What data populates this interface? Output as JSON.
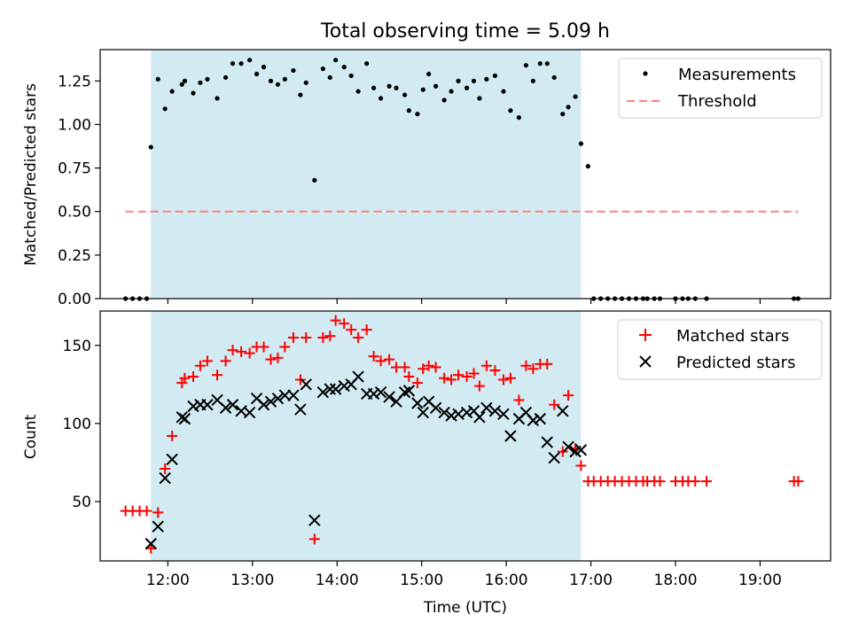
{
  "chart_data": [
    {
      "type": "scatter",
      "title": "Total observing time = 5.09 h",
      "xlabel": "",
      "ylabel": "Matched/Predicted stars",
      "xlim": [
        "11:12",
        "19:50"
      ],
      "ylim": [
        0,
        1.43
      ],
      "yticks": [
        0,
        0.25,
        0.5,
        0.75,
        1.0,
        1.25
      ],
      "ytick_labels": [
        "0.00",
        "0.25",
        "0.50",
        "0.75",
        "1.00",
        "1.25"
      ],
      "shaded_interval": [
        "11:48",
        "16:53"
      ],
      "shade_color": "#add8e6",
      "legend": {
        "placement": "top-right",
        "entries": [
          "Measurements",
          "Threshold"
        ]
      },
      "series": [
        {
          "name": "Measurements",
          "color": "#000000",
          "marker": "dot",
          "x": [
            "11:30",
            "11:35",
            "11:40",
            "11:45",
            "11:48",
            "11:53",
            "11:58",
            "12:03",
            "12:10",
            "12:12",
            "12:18",
            "12:23",
            "12:28",
            "12:35",
            "12:41",
            "12:46",
            "12:52",
            "12:58",
            "13:03",
            "13:08",
            "13:13",
            "13:18",
            "13:23",
            "13:29",
            "13:34",
            "13:38",
            "13:44",
            "13:50",
            "13:55",
            "13:59",
            "14:05",
            "14:10",
            "14:15",
            "14:21",
            "14:26",
            "14:31",
            "14:37",
            "14:42",
            "14:48",
            "14:51",
            "14:57",
            "15:01",
            "15:05",
            "15:10",
            "15:16",
            "15:21",
            "15:26",
            "15:32",
            "15:37",
            "15:41",
            "15:46",
            "15:52",
            "15:58",
            "16:03",
            "16:09",
            "16:14",
            "16:19",
            "16:24",
            "16:29",
            "16:34",
            "16:40",
            "16:44",
            "16:49",
            "16:53",
            "16:58",
            "17:02",
            "17:07",
            "17:12",
            "17:17",
            "17:22",
            "17:27",
            "17:32",
            "17:37",
            "17:40",
            "17:45",
            "17:49",
            "18:00",
            "18:05",
            "18:09",
            "18:14",
            "18:22",
            "19:24",
            "19:27"
          ],
          "y": [
            0,
            0,
            0,
            0,
            0.87,
            1.26,
            1.09,
            1.19,
            1.23,
            1.25,
            1.18,
            1.24,
            1.26,
            1.15,
            1.27,
            1.35,
            1.35,
            1.37,
            1.29,
            1.33,
            1.25,
            1.23,
            1.26,
            1.31,
            1.17,
            1.24,
            0.68,
            1.32,
            1.27,
            1.37,
            1.33,
            1.28,
            1.19,
            1.35,
            1.21,
            1.15,
            1.22,
            1.21,
            1.17,
            1.08,
            1.06,
            1.2,
            1.29,
            1.22,
            1.14,
            1.19,
            1.25,
            1.21,
            1.25,
            1.15,
            1.26,
            1.28,
            1.19,
            1.08,
            1.04,
            1.34,
            1.25,
            1.35,
            1.35,
            1.27,
            1.06,
            1.1,
            1.16,
            0.89,
            0.76,
            0,
            0,
            0,
            0,
            0,
            0,
            0,
            0,
            0,
            0,
            0,
            0,
            0,
            0,
            0,
            0,
            0,
            0
          ]
        },
        {
          "name": "Threshold",
          "color": "#ff7f7f",
          "style": "dashed",
          "x": [
            "11:30",
            "19:27"
          ],
          "y": [
            0.5,
            0.5
          ]
        }
      ]
    },
    {
      "type": "scatter",
      "title": "",
      "xlabel": "Time (UTC)",
      "ylabel": "Count",
      "xlim": [
        "11:12",
        "19:50"
      ],
      "ylim": [
        12,
        172
      ],
      "yticks": [
        50,
        100,
        150
      ],
      "ytick_labels": [
        "50",
        "100",
        "150"
      ],
      "xticks": [
        "12:00",
        "13:00",
        "14:00",
        "15:00",
        "16:00",
        "17:00",
        "18:00",
        "19:00"
      ],
      "xtick_labels": [
        "12:00",
        "13:00",
        "14:00",
        "15:00",
        "16:00",
        "17:00",
        "18:00",
        "19:00"
      ],
      "shaded_interval": [
        "11:48",
        "16:53"
      ],
      "shade_color": "#add8e6",
      "legend": {
        "placement": "top-right",
        "entries": [
          "Matched stars",
          "Predicted stars"
        ]
      },
      "series": [
        {
          "name": "Matched stars",
          "color": "#ff0000",
          "marker": "plus",
          "x": [
            "11:30",
            "11:35",
            "11:40",
            "11:45",
            "11:48",
            "11:53",
            "11:58",
            "12:03",
            "12:10",
            "12:12",
            "12:18",
            "12:23",
            "12:28",
            "12:35",
            "12:41",
            "12:46",
            "12:52",
            "12:58",
            "13:03",
            "13:08",
            "13:13",
            "13:18",
            "13:23",
            "13:29",
            "13:34",
            "13:38",
            "13:44",
            "13:50",
            "13:55",
            "13:59",
            "14:05",
            "14:10",
            "14:15",
            "14:21",
            "14:26",
            "14:31",
            "14:37",
            "14:42",
            "14:48",
            "14:51",
            "14:57",
            "15:01",
            "15:05",
            "15:10",
            "15:16",
            "15:21",
            "15:26",
            "15:32",
            "15:37",
            "15:41",
            "15:46",
            "15:52",
            "15:58",
            "16:03",
            "16:09",
            "16:14",
            "16:19",
            "16:24",
            "16:29",
            "16:34",
            "16:40",
            "16:44",
            "16:49",
            "16:53",
            "16:58",
            "17:02",
            "17:07",
            "17:12",
            "17:17",
            "17:22",
            "17:27",
            "17:32",
            "17:37",
            "17:40",
            "17:45",
            "17:49",
            "18:00",
            "18:05",
            "18:09",
            "18:14",
            "18:22",
            "19:24",
            "19:27"
          ],
          "y": [
            44,
            44,
            44,
            44,
            20,
            43,
            71,
            92,
            126,
            129,
            130,
            137,
            140,
            131,
            140,
            147,
            146,
            145,
            149,
            149,
            141,
            142,
            149,
            155,
            128,
            155,
            26,
            155,
            156,
            166,
            164,
            160,
            155,
            160,
            143,
            140,
            141,
            136,
            136,
            130,
            126,
            135,
            137,
            136,
            129,
            128,
            131,
            130,
            132,
            124,
            137,
            134,
            128,
            129,
            115,
            137,
            135,
            138,
            138,
            112,
            82,
            118,
            84,
            73,
            63,
            63,
            63,
            63,
            63,
            63,
            63,
            63,
            63,
            63,
            63,
            63,
            63,
            63,
            63,
            63,
            63,
            63,
            63
          ]
        },
        {
          "name": "Predicted stars",
          "color": "#000000",
          "marker": "x",
          "x": [
            "11:48",
            "11:53",
            "11:58",
            "12:03",
            "12:10",
            "12:12",
            "12:18",
            "12:23",
            "12:28",
            "12:35",
            "12:41",
            "12:46",
            "12:52",
            "12:58",
            "13:03",
            "13:08",
            "13:13",
            "13:18",
            "13:23",
            "13:29",
            "13:34",
            "13:38",
            "13:44",
            "13:50",
            "13:55",
            "13:59",
            "14:05",
            "14:10",
            "14:15",
            "14:21",
            "14:26",
            "14:31",
            "14:37",
            "14:42",
            "14:48",
            "14:51",
            "14:57",
            "15:01",
            "15:05",
            "15:10",
            "15:16",
            "15:21",
            "15:26",
            "15:32",
            "15:37",
            "15:41",
            "15:46",
            "15:52",
            "15:58",
            "16:03",
            "16:09",
            "16:14",
            "16:19",
            "16:24",
            "16:29",
            "16:34",
            "16:40",
            "16:44",
            "16:49",
            "16:53"
          ],
          "y": [
            23,
            34,
            65,
            77,
            104,
            103,
            111,
            112,
            112,
            115,
            110,
            112,
            108,
            107,
            116,
            112,
            114,
            116,
            118,
            118,
            109,
            125,
            38,
            120,
            122,
            122,
            124,
            125,
            130,
            119,
            119,
            120,
            117,
            114,
            120,
            121,
            113,
            107,
            114,
            110,
            107,
            105,
            106,
            107,
            108,
            104,
            110,
            108,
            106,
            92,
            103,
            107,
            102,
            103,
            88,
            78,
            108,
            85,
            82,
            83
          ]
        }
      ]
    }
  ]
}
